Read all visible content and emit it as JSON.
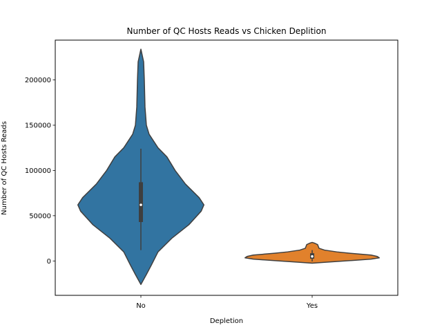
{
  "chart_data": {
    "type": "violin",
    "title": "Number of QC Hosts Reads vs Chicken Deplition",
    "xlabel": "Depletion",
    "ylabel": "Number of QC Hosts Reads",
    "categories": [
      "No",
      "Yes"
    ],
    "ylim": [
      -38000,
      244000
    ],
    "yticks": [
      0,
      50000,
      100000,
      150000,
      200000
    ],
    "ytick_labels": [
      "0",
      "50000",
      "100000",
      "150000",
      "200000"
    ],
    "grid": false,
    "legend": "none",
    "violins": [
      {
        "category": "No",
        "color": "#3274a1",
        "range": [
          -26000,
          234000
        ],
        "median": 62000,
        "q1": 43000,
        "q3": 87000,
        "whisker_low": 12000,
        "whisker_high": 124000,
        "density": [
          [
            -26000,
            0.0
          ],
          [
            -15000,
            0.08
          ],
          [
            -5000,
            0.15
          ],
          [
            10000,
            0.25
          ],
          [
            25000,
            0.45
          ],
          [
            40000,
            0.7
          ],
          [
            55000,
            0.88
          ],
          [
            62000,
            0.92
          ],
          [
            70000,
            0.85
          ],
          [
            85000,
            0.65
          ],
          [
            100000,
            0.5
          ],
          [
            115000,
            0.38
          ],
          [
            125000,
            0.25
          ],
          [
            140000,
            0.12
          ],
          [
            150000,
            0.08
          ],
          [
            170000,
            0.06
          ],
          [
            200000,
            0.05
          ],
          [
            220000,
            0.04
          ],
          [
            234000,
            0.0
          ]
        ]
      },
      {
        "category": "Yes",
        "color": "#e1812c",
        "range": [
          -2500,
          20500
        ],
        "median": 5000,
        "q1": 2500,
        "q3": 8500,
        "whisker_low": -500,
        "whisker_high": 12000,
        "density": [
          [
            -2500,
            0.0
          ],
          [
            -1500,
            0.18
          ],
          [
            0,
            0.48
          ],
          [
            2000,
            0.86
          ],
          [
            3500,
            0.98
          ],
          [
            5000,
            0.95
          ],
          [
            6500,
            0.86
          ],
          [
            8500,
            0.55
          ],
          [
            10000,
            0.36
          ],
          [
            12000,
            0.18
          ],
          [
            14000,
            0.1
          ],
          [
            16000,
            0.09
          ],
          [
            18000,
            0.08
          ],
          [
            19500,
            0.04
          ],
          [
            20500,
            0.0
          ]
        ]
      }
    ]
  }
}
